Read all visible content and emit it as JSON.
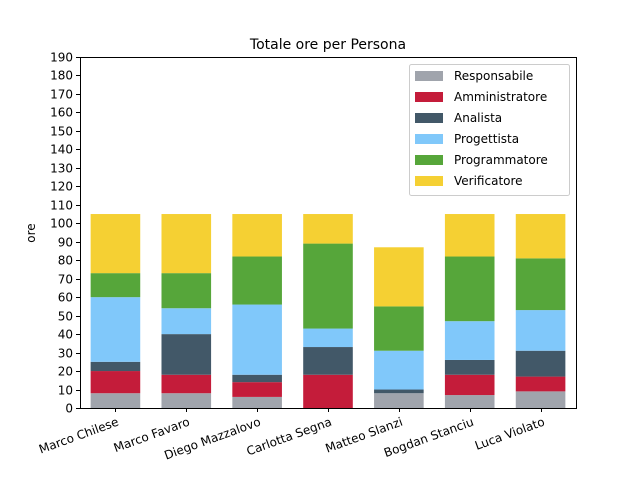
{
  "chart_data": {
    "type": "bar",
    "stacked": true,
    "title": "Totale ore per Persona",
    "xlabel": "",
    "ylabel": "ore",
    "ylim": [
      0,
      190
    ],
    "y_ticks": [
      0,
      10,
      20,
      30,
      40,
      50,
      60,
      70,
      80,
      90,
      100,
      110,
      120,
      130,
      140,
      150,
      160,
      170,
      180,
      190
    ],
    "categories": [
      "Marco Chilese",
      "Marco Favaro",
      "Diego Mazzalovo",
      "Carlotta Segna",
      "Matteo Slanzi",
      "Bogdan Stanciu",
      "Luca Violato"
    ],
    "legend_position": "top-right",
    "grid": false,
    "series": [
      {
        "name": "Responsabile",
        "color": "#a0a4ac",
        "values": [
          8,
          8,
          6,
          0,
          8,
          7,
          9
        ]
      },
      {
        "name": "Amministratore",
        "color": "#c41c3a",
        "values": [
          12,
          10,
          8,
          18,
          0,
          11,
          8
        ]
      },
      {
        "name": "Analista",
        "color": "#425868",
        "values": [
          5,
          22,
          4,
          15,
          2,
          8,
          14
        ]
      },
      {
        "name": "Progettista",
        "color": "#80c8fa",
        "values": [
          35,
          14,
          38,
          10,
          21,
          21,
          22
        ]
      },
      {
        "name": "Programmatore",
        "color": "#56a63a",
        "values": [
          13,
          19,
          26,
          46,
          24,
          35,
          28
        ]
      },
      {
        "name": "Verificatore",
        "color": "#f5d033",
        "values": [
          32,
          32,
          23,
          16,
          32,
          23,
          24
        ]
      }
    ]
  }
}
